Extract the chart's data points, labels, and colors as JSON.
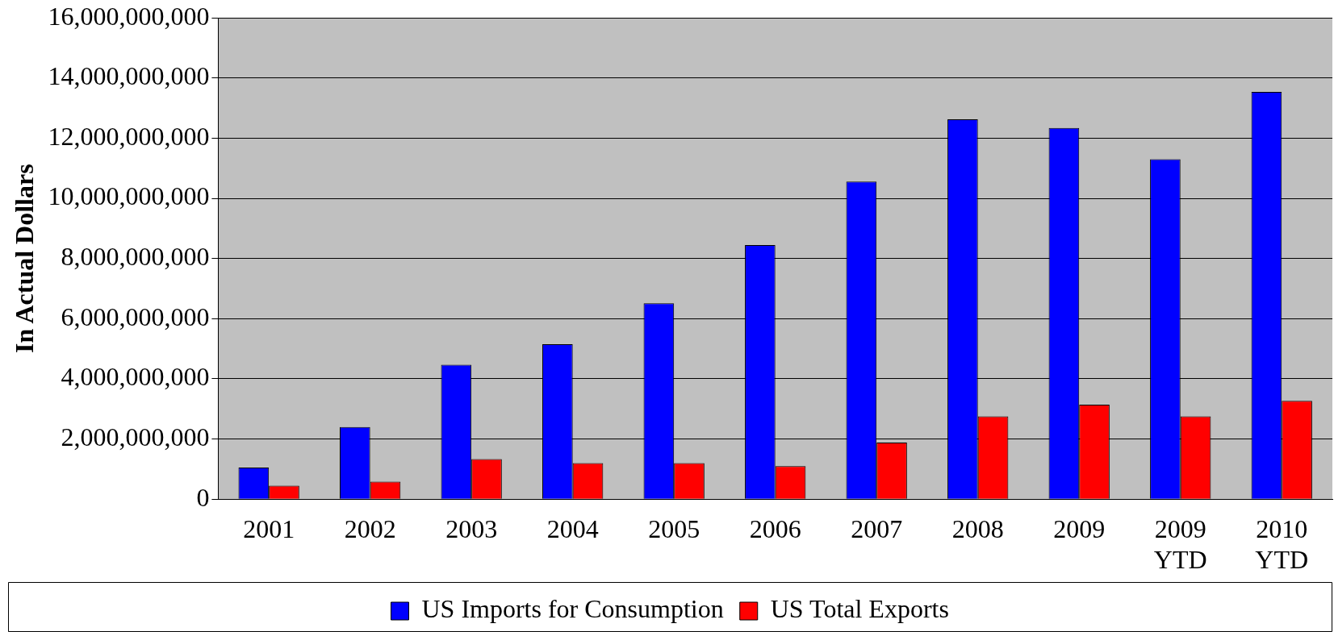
{
  "chart_data": {
    "type": "bar",
    "ylabel": "In Actual Dollars",
    "categories": [
      "2001",
      "2002",
      "2003",
      "2004",
      "2005",
      "2006",
      "2007",
      "2008",
      "2009",
      "2009 YTD",
      "2010 YTD"
    ],
    "series": [
      {
        "name": "US Imports for Consumption",
        "color": "#0000ff",
        "values": [
          1050000000,
          2400000000,
          4470000000,
          5150000000,
          6510000000,
          8450000000,
          10560000000,
          12630000000,
          12340000000,
          11300000000,
          13540000000
        ]
      },
      {
        "name": "US Total Exports",
        "color": "#ff0000",
        "values": [
          450000000,
          580000000,
          1330000000,
          1200000000,
          1200000000,
          1100000000,
          1880000000,
          2750000000,
          3140000000,
          2750000000,
          3270000000
        ]
      }
    ],
    "ylim": [
      0,
      16000000000
    ],
    "yticks": [
      {
        "value": 0,
        "label": "0"
      },
      {
        "value": 2000000000,
        "label": "2,000,000,000"
      },
      {
        "value": 4000000000,
        "label": "4,000,000,000"
      },
      {
        "value": 6000000000,
        "label": "6,000,000,000"
      },
      {
        "value": 8000000000,
        "label": "8,000,000,000"
      },
      {
        "value": 10000000000,
        "label": "10,000,000,000"
      },
      {
        "value": 12000000000,
        "label": "12,000,000,000"
      },
      {
        "value": 14000000000,
        "label": "14,000,000,000"
      },
      {
        "value": 16000000000,
        "label": "16,000,000,000"
      }
    ],
    "grid": "y",
    "legend": "bottom"
  }
}
